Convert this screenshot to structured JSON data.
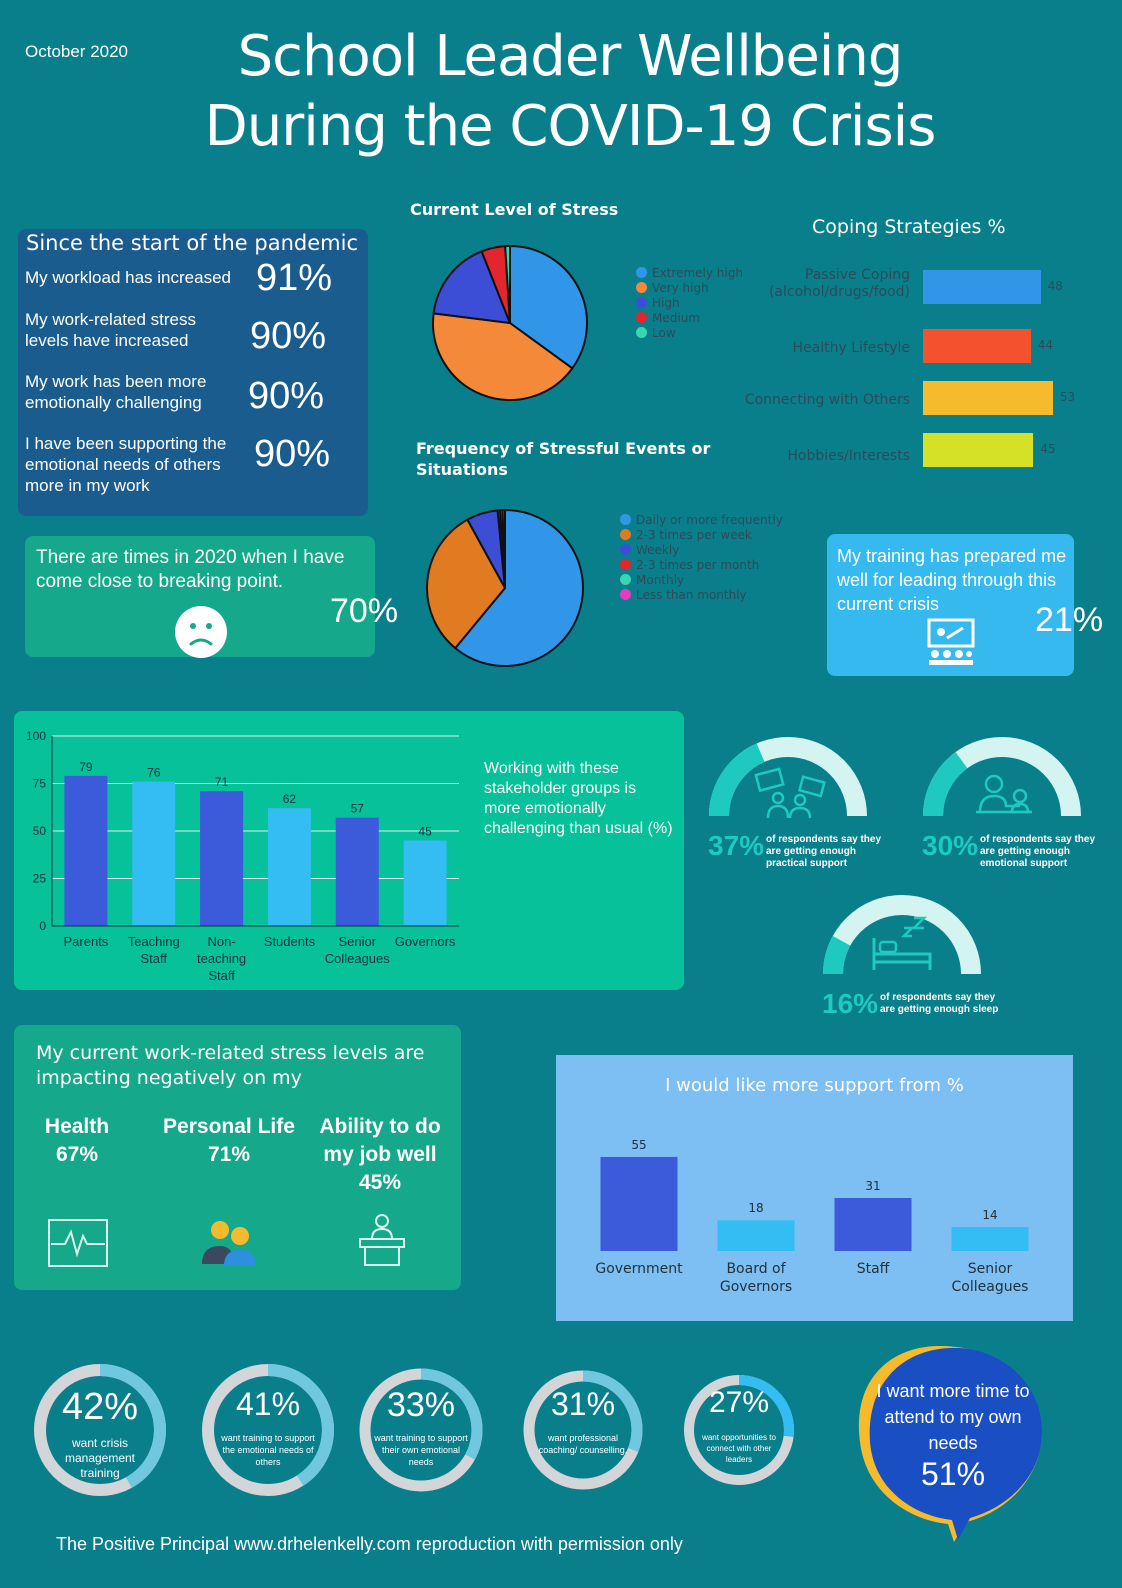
{
  "date": "October 2020",
  "title": {
    "line1": "School Leader Wellbeing",
    "line2": "During the COVID-19 Crisis"
  },
  "pandemic": {
    "heading": "Since the start of the pandemic",
    "items": [
      {
        "label": "My workload has increased",
        "value": "91%"
      },
      {
        "label": "My work-related stress levels have increased",
        "value": "90%"
      },
      {
        "label": "My work has been more emotionally challenging",
        "value": "90%"
      },
      {
        "label": "I have been supporting the emotional needs of others more in my work",
        "value": "90%"
      }
    ]
  },
  "breaking_point": {
    "text": "There are times in 2020 when I have come close to  breaking point.",
    "value": "70%",
    "icon": "sad-face-icon"
  },
  "training": {
    "text": "My training has prepared me well for leading through this current crisis",
    "value": "21%",
    "icon": "teacher-presentation-icon"
  },
  "stakeholder_caption": "Working with these stakeholder groups is more emotionally challenging than usual (%)",
  "gauges": [
    {
      "value": "37%",
      "fraction": 0.37,
      "text": "of respondents say they are getting enough practical support",
      "icon": "protest-signs-icon"
    },
    {
      "value": "30%",
      "fraction": 0.3,
      "text": "of respondents say they are getting enough emotional support",
      "icon": "counselling-icon"
    },
    {
      "value": "16%",
      "fraction": 0.16,
      "text": "of respondents say they are getting enough sleep",
      "icon": "bed-sleep-icon"
    }
  ],
  "impact": {
    "heading": "My current work-related stress levels are impacting negatively on my",
    "items": [
      {
        "label": "Health",
        "value": "67%",
        "icon": "heartbeat-monitor-icon"
      },
      {
        "label": "Personal Life",
        "value": "71%",
        "icon": "people-icon"
      },
      {
        "label": "Ability to do my job well",
        "value": "45%",
        "icon": "person-desk-icon"
      }
    ]
  },
  "rings": [
    {
      "value": "42%",
      "fraction": 0.42,
      "text": "want crisis management training"
    },
    {
      "value": "41%",
      "fraction": 0.41,
      "text": "want training to support the emotional needs of others"
    },
    {
      "value": "33%",
      "fraction": 0.33,
      "text": "want training to support their own emotional needs"
    },
    {
      "value": "31%",
      "fraction": 0.31,
      "text": "want professional coaching/ counselling."
    },
    {
      "value": "27%",
      "fraction": 0.27,
      "text": "want opportunities to connect with other leaders"
    }
  ],
  "own_needs": {
    "text": "I want more time to attend to my own needs",
    "value": "51%"
  },
  "footer": "The Positive Principal www.drhelenkelly.com reproduction with permission only",
  "colors": {
    "background": "#0a7f8c",
    "bar_dark": "#3b5bdb",
    "bar_light": "#33bdf2",
    "gauge": "#1ec9c0"
  },
  "chart_data": [
    {
      "id": "stress",
      "type": "pie",
      "title": "Current Level of Stress",
      "categories": [
        "Extremely high",
        "Very high",
        "High",
        "Medium",
        "Low"
      ],
      "values": [
        35,
        42,
        17,
        5,
        1
      ],
      "colors": [
        "#3296e8",
        "#f5893a",
        "#3d4ed6",
        "#e3252d",
        "#3ad6b2"
      ]
    },
    {
      "id": "frequency",
      "type": "pie",
      "title": "Frequency of Stressful Events or Situations",
      "categories": [
        "Daily or more frequently",
        "2-3 times per week",
        "Weekly",
        "2-3 times per month",
        "Monthly",
        "Less than monthly"
      ],
      "values": [
        61,
        31,
        6.5,
        0.5,
        0.5,
        0.5
      ],
      "colors": [
        "#3296e8",
        "#e07b22",
        "#3d4ed6",
        "#e3252d",
        "#3ad6b2",
        "#e83cc0"
      ]
    },
    {
      "id": "coping",
      "type": "bar",
      "title": "Coping Strategies %",
      "categories": [
        "Passive Coping (alcohol/drugs/food)",
        "Healthy Lifestyle",
        "Connecting with Others",
        "Hobbies/Interests"
      ],
      "values": [
        48,
        44,
        53,
        45
      ],
      "colors": [
        "#3296e8",
        "#f4522d",
        "#f5bb2c",
        "#d4e126"
      ]
    },
    {
      "id": "stakeholders",
      "type": "bar",
      "categories": [
        "Parents",
        "Teaching Staff",
        "Non-teaching Staff",
        "Students",
        "Senior Colleagues",
        "Governors"
      ],
      "values": [
        79,
        76,
        71,
        62,
        57,
        45
      ],
      "ylim": [
        0,
        100
      ],
      "yticks": [
        0,
        25,
        50,
        75,
        100
      ]
    },
    {
      "id": "support",
      "type": "bar",
      "title": "I would like more support from %",
      "categories": [
        "Government",
        "Board of Governors",
        "Staff",
        "Senior Colleagues"
      ],
      "values": [
        55,
        18,
        31,
        14
      ]
    }
  ]
}
